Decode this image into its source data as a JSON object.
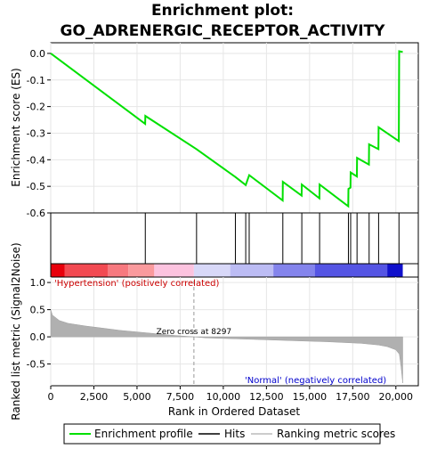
{
  "chart_data": {
    "type": "line",
    "title_line1": "Enrichment plot:",
    "title_line2": "GO_ADRENERGIC_RECEPTOR_ACTIVITY",
    "es_ylabel": "Enrichment score (ES)",
    "metric_ylabel": "Ranked list metric (Signal2Noise)",
    "xlabel": "Rank in Ordered Dataset",
    "xlim": [
      0,
      21300
    ],
    "x_ticks": [
      0,
      2500,
      5000,
      7500,
      10000,
      12500,
      15000,
      17500,
      20000
    ],
    "x_tick_labels": [
      "0",
      "2,500",
      "5,000",
      "7,500",
      "10,000",
      "12,500",
      "15,000",
      "17,500",
      "20,000"
    ],
    "es_ylim": [
      -0.6,
      0.04
    ],
    "es_y_ticks": [
      0.0,
      -0.1,
      -0.2,
      -0.3,
      -0.4,
      -0.5,
      -0.6
    ],
    "es_y_tick_labels": [
      "0.0",
      "-0.1",
      "-0.2",
      "-0.3",
      "-0.4",
      "-0.5",
      "-0.6"
    ],
    "metric_ylim": [
      -0.9,
      1.1
    ],
    "metric_y_ticks": [
      1.0,
      0.5,
      0.0,
      -0.5
    ],
    "metric_y_tick_labels": [
      "1.0",
      "0.5",
      "0.0",
      "-0.5"
    ],
    "grid": true,
    "hits": [
      5480,
      8450,
      10700,
      11300,
      11500,
      13450,
      14550,
      15580,
      17250,
      17380,
      17750,
      18450,
      19000,
      20180
    ],
    "enrichment_profile": {
      "x": [
        0,
        5470,
        5480,
        8450,
        10700,
        11300,
        11500,
        13440,
        13450,
        14540,
        14550,
        15570,
        15580,
        17240,
        17250,
        17370,
        17380,
        17740,
        17750,
        18440,
        18450,
        18990,
        19000,
        20170,
        20180,
        20190,
        20400
      ],
      "y": [
        0.0,
        -0.265,
        -0.235,
        -0.36,
        -0.465,
        -0.495,
        -0.458,
        -0.553,
        -0.483,
        -0.535,
        -0.493,
        -0.545,
        -0.493,
        -0.575,
        -0.51,
        -0.505,
        -0.448,
        -0.463,
        -0.393,
        -0.418,
        -0.342,
        -0.36,
        -0.278,
        -0.33,
        -0.17,
        0.008,
        0.005
      ]
    },
    "ranking_metric": {
      "x": [
        0,
        100,
        500,
        1000,
        2000,
        3000,
        4000,
        5000,
        6000,
        7000,
        8297,
        9000,
        10000,
        12000,
        14000,
        16000,
        18000,
        19000,
        19500,
        20000,
        20200,
        20300,
        20400
      ],
      "y": [
        0.5,
        0.4,
        0.3,
        0.25,
        0.2,
        0.16,
        0.12,
        0.09,
        0.06,
        0.03,
        0.0,
        -0.02,
        -0.03,
        -0.05,
        -0.07,
        -0.09,
        -0.12,
        -0.15,
        -0.18,
        -0.24,
        -0.32,
        -0.55,
        -0.85
      ]
    },
    "zero_cross": 8297,
    "zero_cross_label": "Zero cross at 8297",
    "positive_label": "'Hypertension' (positively correlated)",
    "negative_label": "'Normal' (negatively correlated)",
    "legend": [
      "Enrichment profile",
      "Hits",
      "Ranking metric scores"
    ],
    "colors": {
      "enrichment": "#00e000",
      "positive": "#ff0000",
      "negative": "#0000ff",
      "metric_fill": "#b0b0b0"
    }
  }
}
